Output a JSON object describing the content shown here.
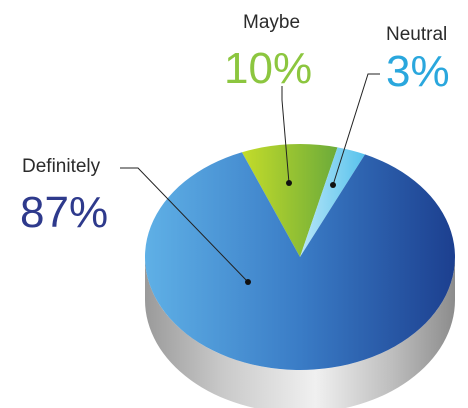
{
  "chart_data": {
    "type": "pie",
    "title": "",
    "slices": [
      {
        "label": "Definitely",
        "value": 87,
        "value_label": "87%",
        "color": "#3d7bc4",
        "label_color": "#2e3a8c"
      },
      {
        "label": "Maybe",
        "value": 10,
        "value_label": "10%",
        "color": "#8cc63f",
        "label_color": "#8cc63f"
      },
      {
        "label": "Neutral",
        "value": 3,
        "value_label": "3%",
        "color": "#7fd3f0",
        "label_color": "#2aa7dd"
      }
    ],
    "style": "3d",
    "legend": "none"
  }
}
